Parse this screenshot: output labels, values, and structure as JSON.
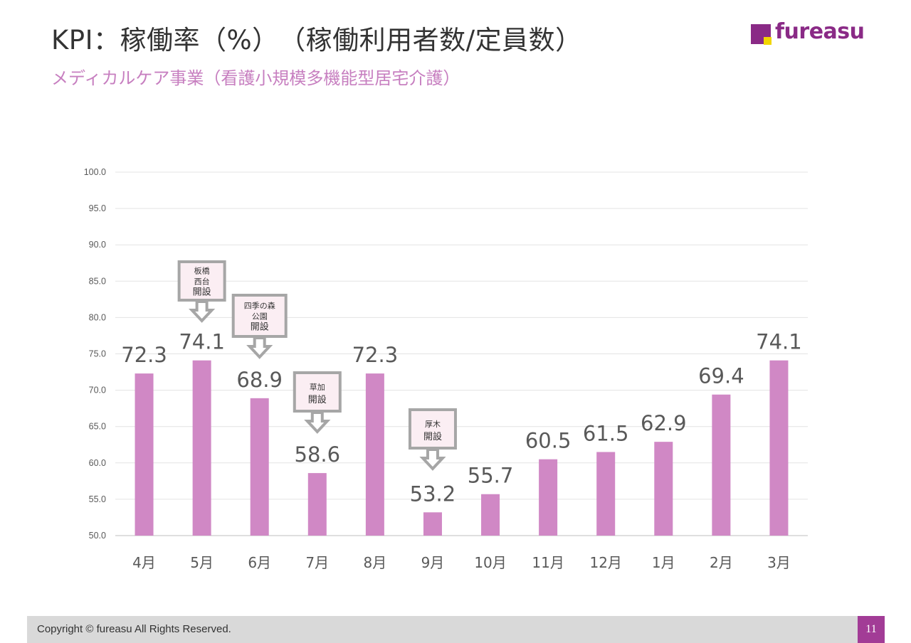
{
  "header": {
    "title": "KPI：稼働率（%）　（稼働利用者数/定員数）",
    "subtitle": "メディカルケア事業（看護小規模多機能型居宅介護）"
  },
  "logo": {
    "text": "fureasu",
    "primary_color": "#8a2a86",
    "accent_color": "#f2d600"
  },
  "chart_data": {
    "type": "bar",
    "categories": [
      "4月",
      "5月",
      "6月",
      "7月",
      "8月",
      "9月",
      "10月",
      "11月",
      "12月",
      "1月",
      "2月",
      "3月"
    ],
    "values": [
      72.3,
      74.1,
      68.9,
      58.6,
      72.3,
      53.2,
      55.7,
      60.5,
      61.5,
      62.9,
      69.4,
      74.1
    ],
    "value_labels": [
      "72.3",
      "74.1",
      "68.9",
      "58.6",
      "72.3",
      "53.2",
      "55.7",
      "60.5",
      "61.5",
      "62.9",
      "69.4",
      "74.1"
    ],
    "ylim": [
      50,
      100
    ],
    "yticks": [
      "50.0",
      "55.0",
      "60.0",
      "65.0",
      "70.0",
      "75.0",
      "80.0",
      "85.0",
      "90.0",
      "95.0",
      "100.0"
    ],
    "grid": true,
    "bar_color": "#d088c5",
    "annotations": [
      {
        "category": "5月",
        "lines": [
          "板橋",
          "西台",
          "開設"
        ]
      },
      {
        "category": "6月",
        "lines": [
          "四季の森",
          "公園",
          "開設"
        ]
      },
      {
        "category": "7月",
        "lines": [
          "草加",
          "開設"
        ]
      },
      {
        "category": "9月",
        "lines": [
          "厚木",
          "開設"
        ]
      }
    ]
  },
  "footer": {
    "copyright": "Copyright © fureasu All Rights Reserved.",
    "page_number": "11"
  }
}
